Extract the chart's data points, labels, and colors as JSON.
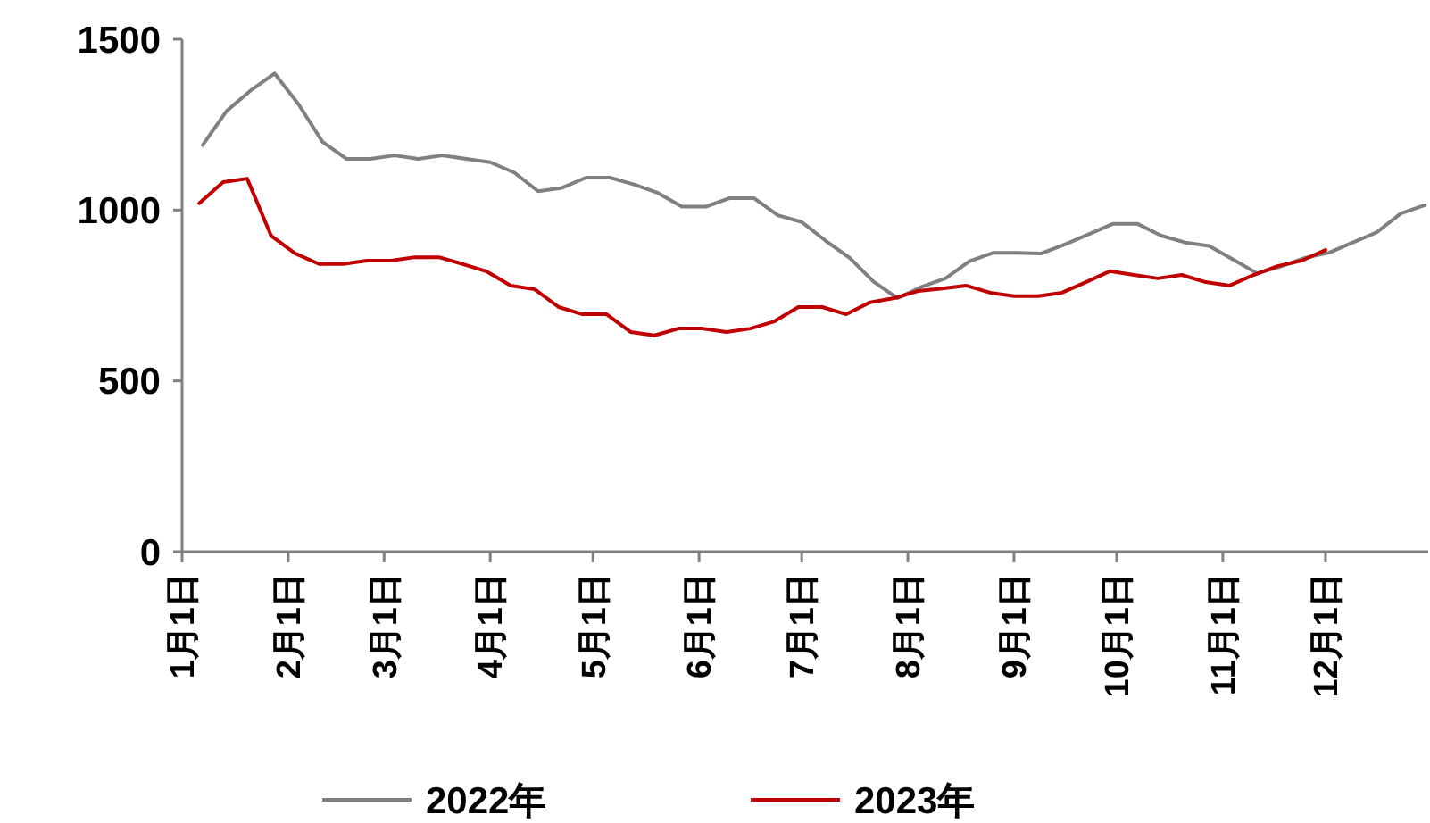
{
  "chart_data": {
    "type": "line",
    "xlim": [
      "--01-01",
      "--12-31"
    ],
    "xticks": [
      {
        "value": "--01-01",
        "label": "1月1日"
      },
      {
        "value": "--02-01",
        "label": "2月1日"
      },
      {
        "value": "--03-01",
        "label": "3月1日"
      },
      {
        "value": "--04-01",
        "label": "4月1日"
      },
      {
        "value": "--05-01",
        "label": "5月1日"
      },
      {
        "value": "--06-01",
        "label": "6月1日"
      },
      {
        "value": "--07-01",
        "label": "7月1日"
      },
      {
        "value": "--08-01",
        "label": "8月1日"
      },
      {
        "value": "--09-01",
        "label": "9月1日"
      },
      {
        "value": "--10-01",
        "label": "10月1日"
      },
      {
        "value": "--11-01",
        "label": "11月1日"
      },
      {
        "value": "--12-01",
        "label": "12月1日"
      }
    ],
    "ylim": [
      0,
      1500
    ],
    "yticks": [
      0,
      500,
      1000,
      1500
    ],
    "grid": false,
    "legend": "bottom",
    "marker": "none",
    "line_style": "solid",
    "series": [
      {
        "name": "2022年",
        "color": "#808080",
        "x": [
          "--01-07",
          "--01-14",
          "--01-21",
          "--01-28",
          "--02-04",
          "--02-11",
          "--02-18",
          "--02-25",
          "--03-04",
          "--03-11",
          "--03-18",
          "--03-25",
          "--04-01",
          "--04-08",
          "--04-15",
          "--04-22",
          "--04-29",
          "--05-06",
          "--05-13",
          "--05-20",
          "--05-27",
          "--06-03",
          "--06-10",
          "--06-17",
          "--06-24",
          "--07-01",
          "--07-08",
          "--07-15",
          "--07-22",
          "--07-29",
          "--08-05",
          "--08-12",
          "--08-19",
          "--08-26",
          "--09-02",
          "--09-09",
          "--09-16",
          "--09-23",
          "--09-30",
          "--10-07",
          "--10-14",
          "--10-21",
          "--10-28",
          "--11-04",
          "--11-11",
          "--11-18",
          "--11-25",
          "--12-02",
          "--12-09",
          "--12-16",
          "--12-23",
          "--12-30"
        ],
        "values": [
          1190,
          1290,
          1350,
          1400,
          1310,
          1200,
          1150,
          1150,
          1160,
          1150,
          1160,
          1150,
          1140,
          1110,
          1055,
          1065,
          1095,
          1095,
          1075,
          1050,
          1010,
          1010,
          1035,
          1035,
          985,
          965,
          910,
          860,
          790,
          742,
          775,
          800,
          850,
          875,
          875,
          873,
          900,
          930,
          960,
          960,
          925,
          905,
          895,
          855,
          815,
          835,
          860,
          875,
          905,
          935,
          990,
          1014
        ]
      },
      {
        "name": "2023年",
        "color": "#c00000",
        "x": [
          "--01-06",
          "--01-13",
          "--01-20",
          "--01-27",
          "--02-03",
          "--02-10",
          "--02-17",
          "--02-24",
          "--03-03",
          "--03-10",
          "--03-17",
          "--03-24",
          "--03-31",
          "--04-07",
          "--04-14",
          "--04-21",
          "--04-28",
          "--05-05",
          "--05-12",
          "--05-19",
          "--05-26",
          "--06-02",
          "--06-09",
          "--06-16",
          "--06-23",
          "--06-30",
          "--07-07",
          "--07-14",
          "--07-21",
          "--07-28",
          "--08-04",
          "--08-11",
          "--08-18",
          "--08-25",
          "--09-01",
          "--09-08",
          "--09-15",
          "--09-22",
          "--09-29",
          "--10-06",
          "--10-13",
          "--10-20",
          "--10-27",
          "--11-03",
          "--11-10",
          "--11-17",
          "--11-24",
          "--12-01"
        ],
        "values": [
          1020,
          1082,
          1092,
          925,
          873,
          842,
          842,
          852,
          852,
          862,
          862,
          842,
          820,
          779,
          768,
          716,
          695,
          695,
          643,
          633,
          653,
          653,
          643,
          653,
          674,
          716,
          716,
          695,
          730,
          742,
          763,
          770,
          779,
          758,
          748,
          748,
          758,
          789,
          821,
          810,
          800,
          810,
          789,
          779,
          810,
          836,
          852,
          883
        ]
      }
    ]
  }
}
